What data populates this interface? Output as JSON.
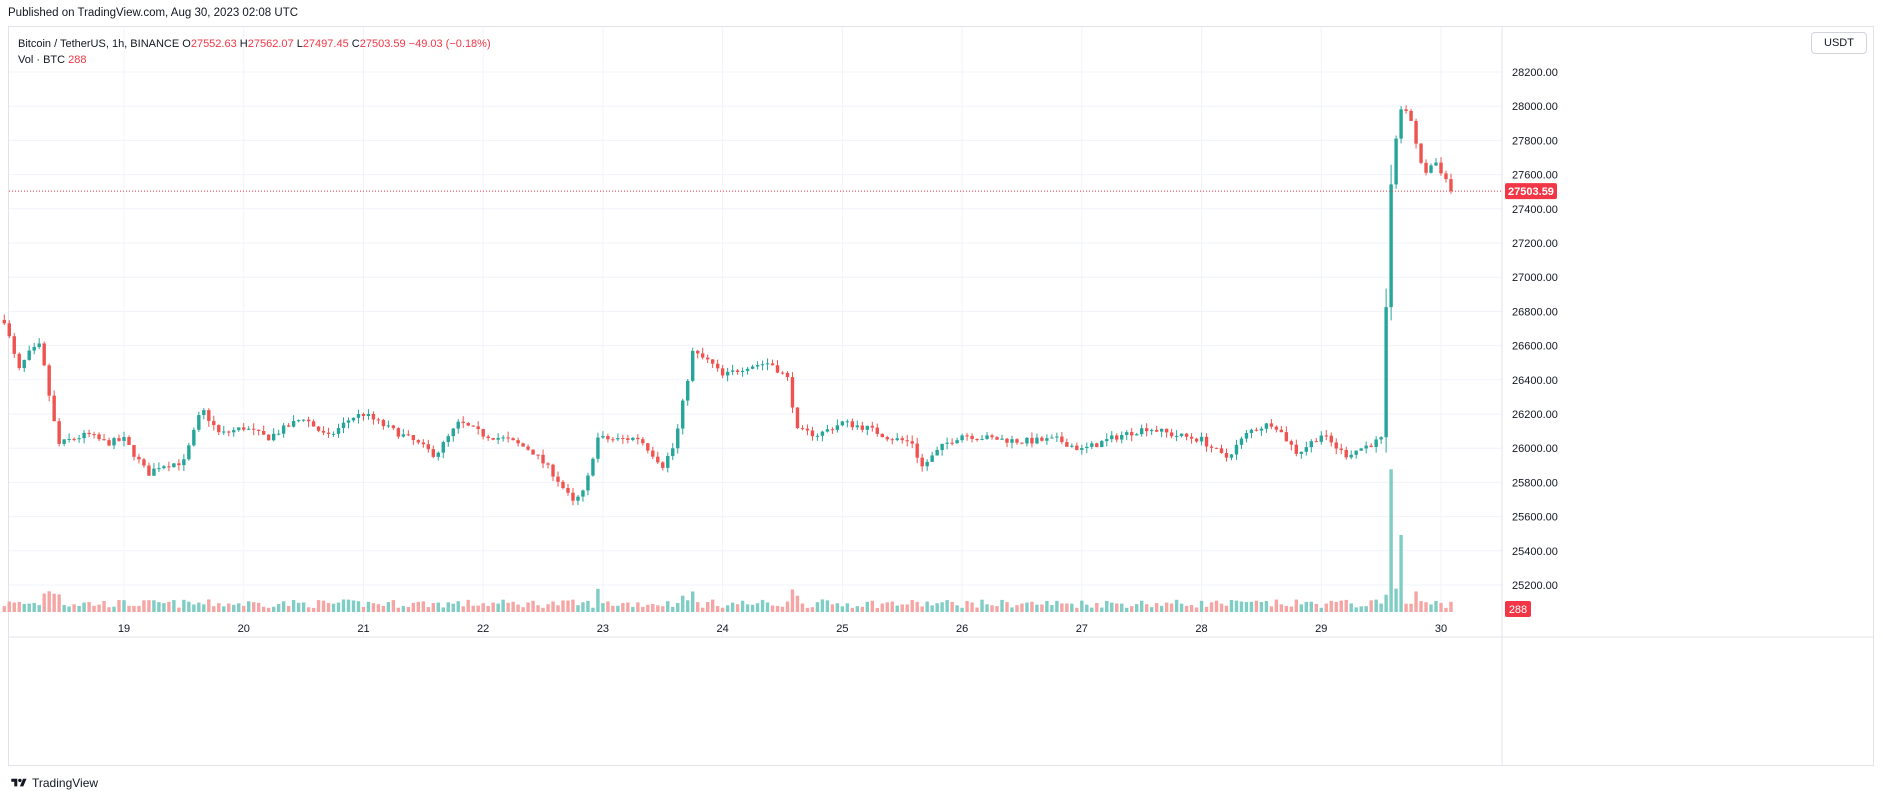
{
  "header": {
    "published": "Published on TradingView.com, Aug 30, 2023 02:08 UTC"
  },
  "legend": {
    "symbol": "Bitcoin / TetherUS, 1h, BINANCE",
    "open_label": "O",
    "open": "27552.63",
    "high_label": "H",
    "high": "27562.07",
    "low_label": "L",
    "low": "27497.45",
    "close_label": "C",
    "close": "27503.59",
    "change": "−49.03 (−0.18%)",
    "vol_label": "Vol · BTC",
    "vol": "288"
  },
  "currency_button": "USDT",
  "footer": {
    "brand": "TradingView"
  },
  "colors": {
    "up": "#26a69a",
    "down": "#ef5350",
    "up_vol": "#7fcdc4",
    "down_vol": "#f5a6a4",
    "last_price": "#f23645",
    "grid": "#f0f3fa"
  },
  "chart_data": {
    "type": "candlestick",
    "symbol": "BTCUSDT",
    "interval": "1h",
    "price_axis": {
      "ticks": [
        25200,
        25400,
        25600,
        25800,
        26000,
        26200,
        26400,
        26600,
        26800,
        27000,
        27200,
        27400,
        27600,
        27800,
        28000,
        28200
      ],
      "tick_labels": [
        "25200.00",
        "25400.00",
        "25600.00",
        "25800.00",
        "26000.00",
        "26200.00",
        "26400.00",
        "26600.00",
        "26800.00",
        "27000.00",
        "27200.00",
        "27400.00",
        "27600.00",
        "27800.00",
        "28000.00",
        "28200.00"
      ]
    },
    "time_axis": {
      "labels": [
        "19",
        "20",
        "21",
        "22",
        "23",
        "24",
        "25",
        "26",
        "27",
        "28",
        "29",
        "30"
      ]
    },
    "last_price": 27503.59,
    "last_price_label": "27503.59",
    "last_volume": 288,
    "last_volume_label": "288",
    "grid": true,
    "approx_close_path": [
      [
        18.0,
        26750
      ],
      [
        18.12,
        26450
      ],
      [
        18.2,
        26550
      ],
      [
        18.3,
        26600
      ],
      [
        18.45,
        26020
      ],
      [
        18.55,
        26050
      ],
      [
        18.7,
        26080
      ],
      [
        18.85,
        26030
      ],
      [
        19.0,
        26050
      ],
      [
        19.2,
        25850
      ],
      [
        19.3,
        25900
      ],
      [
        19.5,
        25920
      ],
      [
        19.65,
        26230
      ],
      [
        19.8,
        26080
      ],
      [
        20.0,
        26120
      ],
      [
        20.2,
        26060
      ],
      [
        20.5,
        26180
      ],
      [
        20.7,
        26060
      ],
      [
        20.9,
        26180
      ],
      [
        21.0,
        26200
      ],
      [
        21.2,
        26120
      ],
      [
        21.4,
        26050
      ],
      [
        21.6,
        25960
      ],
      [
        21.8,
        26150
      ],
      [
        22.0,
        26080
      ],
      [
        22.2,
        26050
      ],
      [
        22.4,
        25990
      ],
      [
        22.6,
        25840
      ],
      [
        22.75,
        25680
      ],
      [
        22.85,
        25750
      ],
      [
        22.95,
        26060
      ],
      [
        23.1,
        26050
      ],
      [
        23.3,
        26060
      ],
      [
        23.5,
        25900
      ],
      [
        23.6,
        26020
      ],
      [
        23.75,
        26560
      ],
      [
        23.9,
        26500
      ],
      [
        24.0,
        26420
      ],
      [
        24.2,
        26480
      ],
      [
        24.4,
        26500
      ],
      [
        24.55,
        26400
      ],
      [
        24.62,
        26100
      ],
      [
        24.8,
        26080
      ],
      [
        25.0,
        26150
      ],
      [
        25.2,
        26120
      ],
      [
        25.4,
        26060
      ],
      [
        25.6,
        26030
      ],
      [
        25.65,
        25880
      ],
      [
        25.85,
        26020
      ],
      [
        26.0,
        26080
      ],
      [
        26.2,
        26060
      ],
      [
        26.5,
        26040
      ],
      [
        26.8,
        26050
      ],
      [
        27.0,
        25990
      ],
      [
        27.3,
        26070
      ],
      [
        27.55,
        26120
      ],
      [
        27.75,
        26080
      ],
      [
        28.0,
        26050
      ],
      [
        28.2,
        25940
      ],
      [
        28.4,
        26100
      ],
      [
        28.6,
        26150
      ],
      [
        28.8,
        25970
      ],
      [
        29.0,
        26080
      ],
      [
        29.2,
        25960
      ],
      [
        29.5,
        26050
      ],
      [
        29.58,
        27500
      ],
      [
        29.65,
        28000
      ],
      [
        29.75,
        27920
      ],
      [
        29.85,
        27600
      ],
      [
        29.95,
        27680
      ],
      [
        30.1,
        27503.59
      ]
    ],
    "volume_spikes": [
      {
        "x": 29.58,
        "volume_rel": 1.0
      },
      {
        "x": 29.68,
        "volume_rel": 0.54
      }
    ]
  }
}
